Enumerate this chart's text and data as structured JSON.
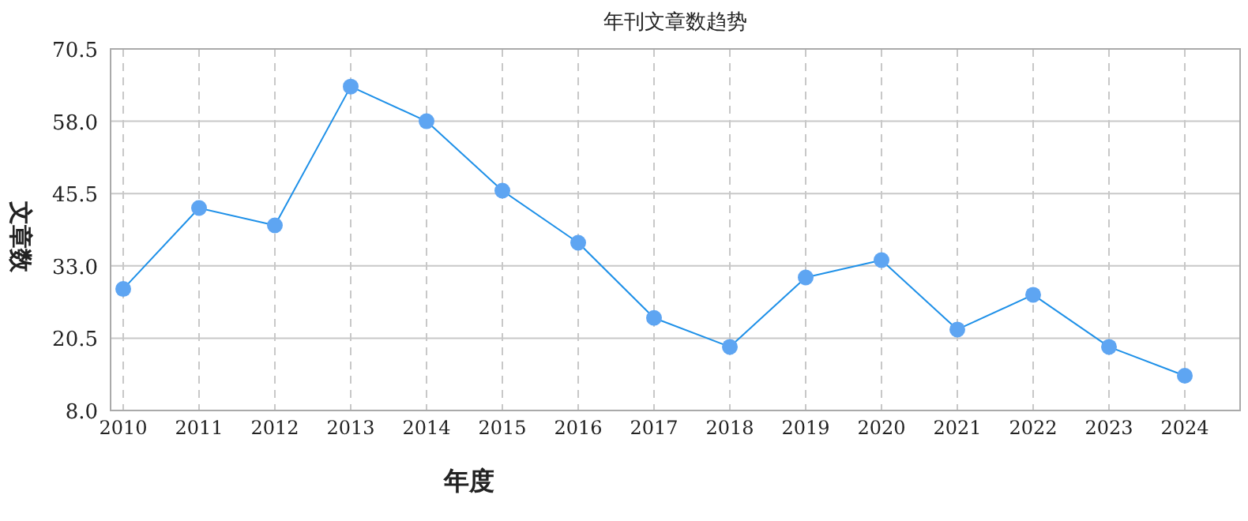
{
  "chart_data": {
    "type": "line",
    "title": "年刊文章数趋势",
    "xlabel": "年度",
    "ylabel": "文章数",
    "categories": [
      "2010",
      "2011",
      "2012",
      "2013",
      "2014",
      "2015",
      "2016",
      "2017",
      "2018",
      "2019",
      "2020",
      "2021",
      "2022",
      "2023",
      "2024"
    ],
    "series": [
      {
        "color": "#1e90e8",
        "values": [
          29,
          43,
          40,
          64,
          58,
          46,
          37,
          24,
          19,
          31,
          34,
          22,
          28,
          19,
          14
        ]
      }
    ],
    "ylim": [
      8,
      70.5
    ],
    "yticks": [
      {
        "value": 8,
        "label": "8.0"
      },
      20.5,
      {
        "value": 33,
        "label": "33.0"
      },
      45.5,
      {
        "value": 58,
        "label": "58.0"
      },
      70.5
    ],
    "grid": true,
    "marker": "circle",
    "line_style": "solid"
  }
}
